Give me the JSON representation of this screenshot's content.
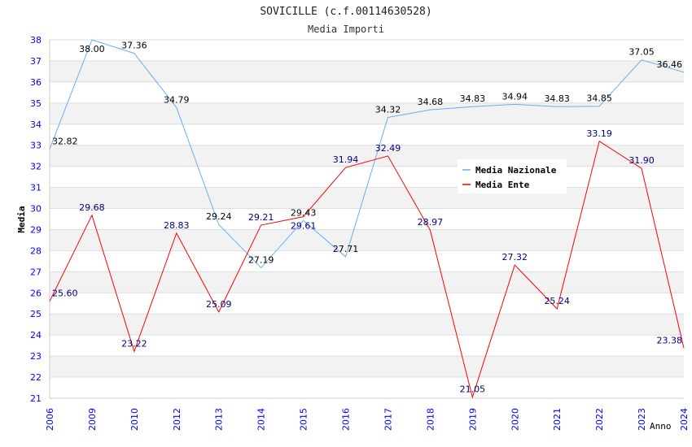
{
  "chart_data": {
    "type": "line",
    "title": "SOVICILLE (c.f.00114630528)",
    "subtitle": "Media Importi",
    "xlabel": "Anno",
    "ylabel": "Media",
    "ylim": [
      21,
      38
    ],
    "yticks": [
      "21",
      "22",
      "23",
      "24",
      "25",
      "26",
      "27",
      "28",
      "29",
      "30",
      "31",
      "32",
      "33",
      "34",
      "35",
      "36",
      "37",
      "38"
    ],
    "categories": [
      "2006",
      "2009",
      "2010",
      "2012",
      "2013",
      "2014",
      "2015",
      "2016",
      "2017",
      "2018",
      "2019",
      "2020",
      "2021",
      "2022",
      "2023",
      "2024"
    ],
    "legend_position": "top-right",
    "series": [
      {
        "name": "Media Nazionale",
        "color": "#6aaef0",
        "label_color": "#000000",
        "values": [
          32.82,
          38.0,
          37.36,
          34.79,
          29.24,
          27.19,
          29.43,
          27.71,
          34.32,
          34.68,
          34.83,
          34.94,
          34.83,
          34.85,
          37.05,
          36.46
        ],
        "labels": [
          "32.82",
          "38.00",
          "37.36",
          "34.79",
          "29.24",
          "27.19",
          "29.43",
          "27.71",
          "34.32",
          "34.68",
          "34.83",
          "34.94",
          "34.83",
          "34.85",
          "37.05",
          "36.46"
        ]
      },
      {
        "name": "Media Ente",
        "color": "#ff0000",
        "label_color": "#000080",
        "values": [
          25.6,
          29.68,
          23.22,
          28.83,
          25.09,
          29.21,
          29.61,
          31.94,
          32.49,
          28.97,
          21.05,
          27.32,
          25.24,
          33.19,
          31.9,
          23.38
        ],
        "labels": [
          "25.60",
          "29.68",
          "23.22",
          "28.83",
          "25.09",
          "29.21",
          "29.61",
          "31.94",
          "32.49",
          "28.97",
          "21.05",
          "27.32",
          "25.24",
          "33.19",
          "31.90",
          "23.38"
        ]
      }
    ]
  }
}
